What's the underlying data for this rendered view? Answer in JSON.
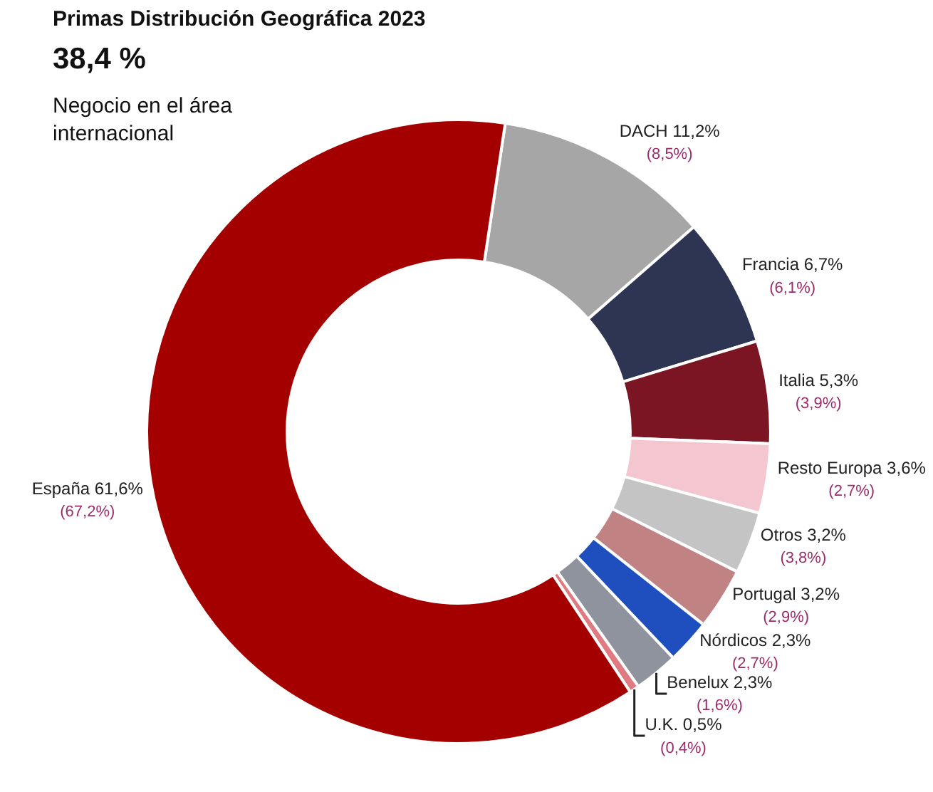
{
  "chart_data": {
    "type": "donut",
    "title": "Primas Distribución Geográfica 2023",
    "subtitle": "38,4 %",
    "categories": [
      "DACH",
      "Francia",
      "Italia",
      "Resto Europa",
      "Otros",
      "Portugal",
      "Nórdicos",
      "Benelux",
      "U.K.",
      "España"
    ],
    "values": [
      11.2,
      6.7,
      5.3,
      3.6,
      3.2,
      3.2,
      2.3,
      2.3,
      0.5,
      61.6
    ],
    "colors": [
      "#a6a6a6",
      "#2e3552",
      "#7b1523",
      "#f4c6cf",
      "#c4c4c4",
      "#c08282",
      "#1f4fbf",
      "#8f939e",
      "#e07a80",
      "#a50000"
    ],
    "value_labels": [
      "11,2%",
      "6,7%",
      "5,3%",
      "3,6%",
      "3,2%",
      "3,2%",
      "2,3%",
      "2,3%",
      "0,5%",
      "61,6%"
    ],
    "annotations": [
      "Negocio en el área internacional",
      {
        "text": "(8,5%)",
        "x": "DACH"
      },
      {
        "text": "(6,1%)",
        "x": "Francia"
      },
      {
        "text": "(3,9%)",
        "x": "Italia"
      },
      {
        "text": "(2,7%)",
        "x": "Resto Europa"
      },
      {
        "text": "(3,8%)",
        "x": "Otros"
      },
      {
        "text": "(2,9%)",
        "x": "Portugal"
      },
      {
        "text": "(2,7%)",
        "x": "Nórdicos"
      },
      {
        "text": "(1,6%)",
        "x": "Benelux"
      },
      {
        "text": "(0,4%)",
        "x": "U.K."
      },
      {
        "text": "(67,2%)",
        "x": "España"
      }
    ],
    "legend": false
  }
}
